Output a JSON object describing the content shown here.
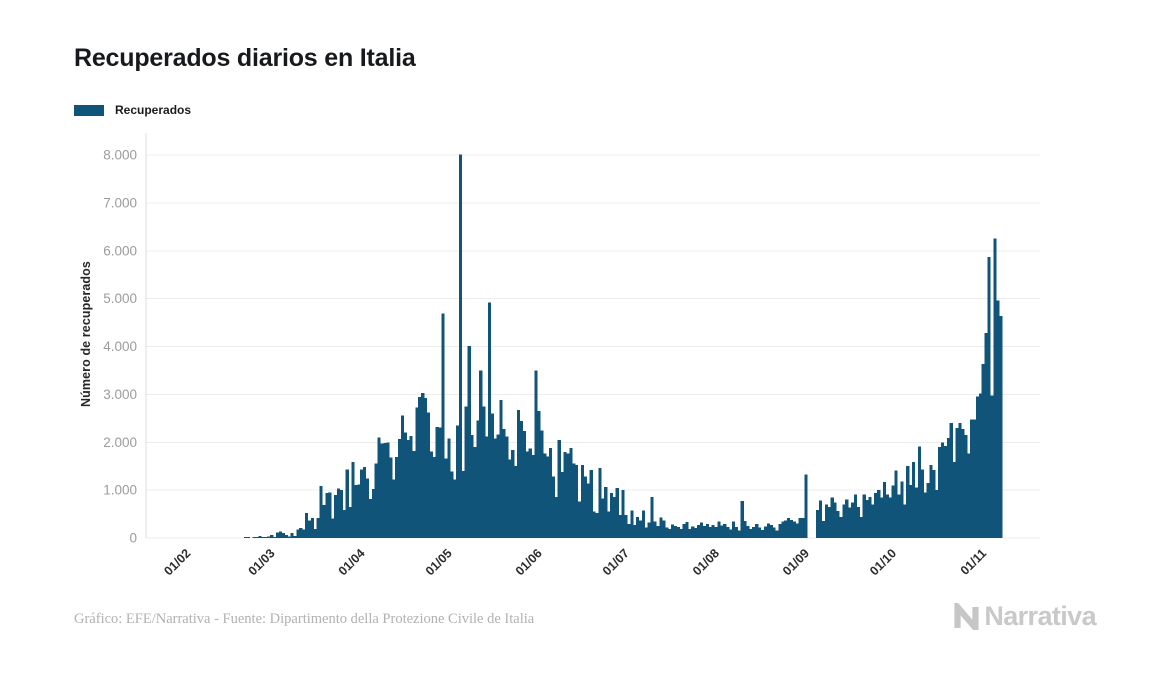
{
  "title": {
    "text": "Recuperados diarios en Italia"
  },
  "legend": {
    "items": [
      {
        "label": "Recuperados",
        "color": "#10547a"
      }
    ]
  },
  "footer": {
    "credit": "Gráfico: EFE/Narrativa - Fuente: Dipartimento della Protezione Civile de Italia",
    "brand": "Narrativa",
    "brand_icon": "narrativa-n-icon",
    "brand_color": "#c9c9c9"
  },
  "colors": {
    "bar": "#10547a",
    "grid": "#ededed",
    "axis_line": "#dcdcdc",
    "y_tick_text": "#9c9c9c",
    "x_tick_text": "#2d2d2d",
    "background": "#ffffff"
  },
  "chart_data": {
    "type": "bar",
    "title": "Recuperados diarios en Italia",
    "series_name": "Recuperados",
    "ylabel": "Número de recuperados",
    "xlabel": "",
    "ylim": [
      0,
      8400
    ],
    "grid": true,
    "legend_position": "top-left",
    "bar_color": "#10547a",
    "y_ticks": [
      0,
      1000,
      2000,
      3000,
      4000,
      5000,
      6000,
      7000,
      8000
    ],
    "y_tick_labels": [
      "0",
      "1.000",
      "2.000",
      "3.000",
      "4.000",
      "5.000",
      "6.000",
      "7.000",
      "8.000"
    ],
    "x_ticks": [
      {
        "label": "01/02",
        "day": 0
      },
      {
        "label": "01/03",
        "day": 29
      },
      {
        "label": "01/04",
        "day": 60
      },
      {
        "label": "01/05",
        "day": 90
      },
      {
        "label": "01/06",
        "day": 121
      },
      {
        "label": "01/07",
        "day": 151
      },
      {
        "label": "01/08",
        "day": 182
      },
      {
        "label": "01/09",
        "day": 213
      },
      {
        "label": "01/10",
        "day": 243
      },
      {
        "label": "01/11",
        "day": 274
      }
    ],
    "start_date_label": "01/02",
    "values": [
      0,
      0,
      0,
      0,
      0,
      0,
      0,
      0,
      0,
      0,
      0,
      0,
      0,
      0,
      0,
      0,
      0,
      0,
      0,
      0,
      0,
      1,
      1,
      0,
      1,
      2,
      40,
      5,
      4,
      33,
      66,
      11,
      116,
      138,
      109,
      66,
      33,
      102,
      41,
      181,
      213,
      181,
      527,
      369,
      414,
      192,
      415,
      1084,
      689,
      943,
      952,
      408,
      894,
      1036,
      999,
      589,
      1434,
      646,
      1590,
      1109,
      1118,
      1431,
      1480,
      1238,
      819,
      1022,
      1555,
      2099,
      1979,
      1985,
      1996,
      1677,
      1224,
      1695,
      2072,
      2563,
      2200,
      2045,
      2128,
      1822,
      2723,
      2943,
      3033,
      2922,
      2622,
      1808,
      1696,
      2317,
      2311,
      4693,
      1665,
      2079,
      1389,
      1225,
      2352,
      8014,
      1401,
      2747,
      4008,
      2155,
      1904,
      2452,
      3502,
      2747,
      2120,
      4917,
      2605,
      2075,
      2160,
      2881,
      2278,
      2120,
      1639,
      1836,
      1502,
      2677,
      2443,
      2240,
      1811,
      1874,
      1737,
      3503,
      2650,
      2250,
      1770,
      1700,
      1875,
      1280,
      860,
      2050,
      1380,
      1800,
      1770,
      1880,
      1560,
      1520,
      760,
      1520,
      1280,
      1140,
      1420,
      550,
      520,
      1460,
      830,
      1070,
      550,
      935,
      860,
      1040,
      480,
      1000,
      480,
      290,
      574,
      270,
      435,
      366,
      574,
      223,
      322,
      860,
      340,
      250,
      430,
      365,
      220,
      190,
      280,
      250,
      230,
      190,
      295,
      335,
      190,
      240,
      210,
      275,
      320,
      255,
      288,
      230,
      275,
      225,
      340,
      260,
      288,
      230,
      180,
      340,
      230,
      160,
      770,
      350,
      255,
      183,
      230,
      290,
      215,
      170,
      240,
      305,
      270,
      215,
      160,
      290,
      348,
      365,
      420,
      380,
      345,
      302,
      420,
      420,
      1322,
      0,
      0,
      0,
      585,
      780,
      360,
      700,
      650,
      850,
      745,
      560,
      440,
      702,
      805,
      640,
      745,
      905,
      650,
      440,
      905,
      790,
      854,
      698,
      940,
      1005,
      850,
      1170,
      905,
      850,
      1100,
      1410,
      908,
      1184,
      700,
      1500,
      1105,
      1590,
      1059,
      1908,
      1428,
      950,
      1150,
      1530,
      1420,
      1000,
      1905,
      2000,
      1920,
      2086,
      2400,
      1590,
      2300,
      2400,
      2280,
      2150,
      1764,
      2477,
      2480,
      2954,
      3016,
      3637,
      4285,
      5868,
      2980,
      6258,
      4961,
      4640
    ]
  }
}
